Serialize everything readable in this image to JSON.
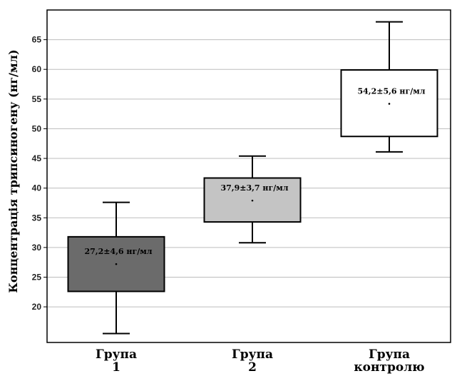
{
  "chart_data": {
    "type": "box",
    "ylabel": "Концентрація трипсиногену (нг/мл)",
    "ylim": [
      14,
      70
    ],
    "yticks": [
      20,
      25,
      30,
      35,
      40,
      45,
      50,
      55,
      60,
      65
    ],
    "grid": true,
    "categories": [
      "Група 1",
      "Група 2",
      "Група контролю"
    ],
    "boxes": [
      {
        "category": "Група 1",
        "min": 15.5,
        "q1": 22.6,
        "mean": 27.2,
        "q3": 31.8,
        "max": 37.6,
        "label": "27,2±4,6 нг/мл",
        "color": "#6b6b6b"
      },
      {
        "category": "Група 2",
        "min": 30.8,
        "q1": 34.3,
        "mean": 37.9,
        "q3": 41.7,
        "max": 45.4,
        "label": "37,9±3,7 нг/мл",
        "color": "#c4c4c4"
      },
      {
        "category": "Група контролю",
        "min": 46.1,
        "q1": 48.7,
        "mean": 54.2,
        "q3": 59.9,
        "max": 68.0,
        "label": "54,2±5,6 нг/мл",
        "color": "#ffffff"
      }
    ]
  }
}
